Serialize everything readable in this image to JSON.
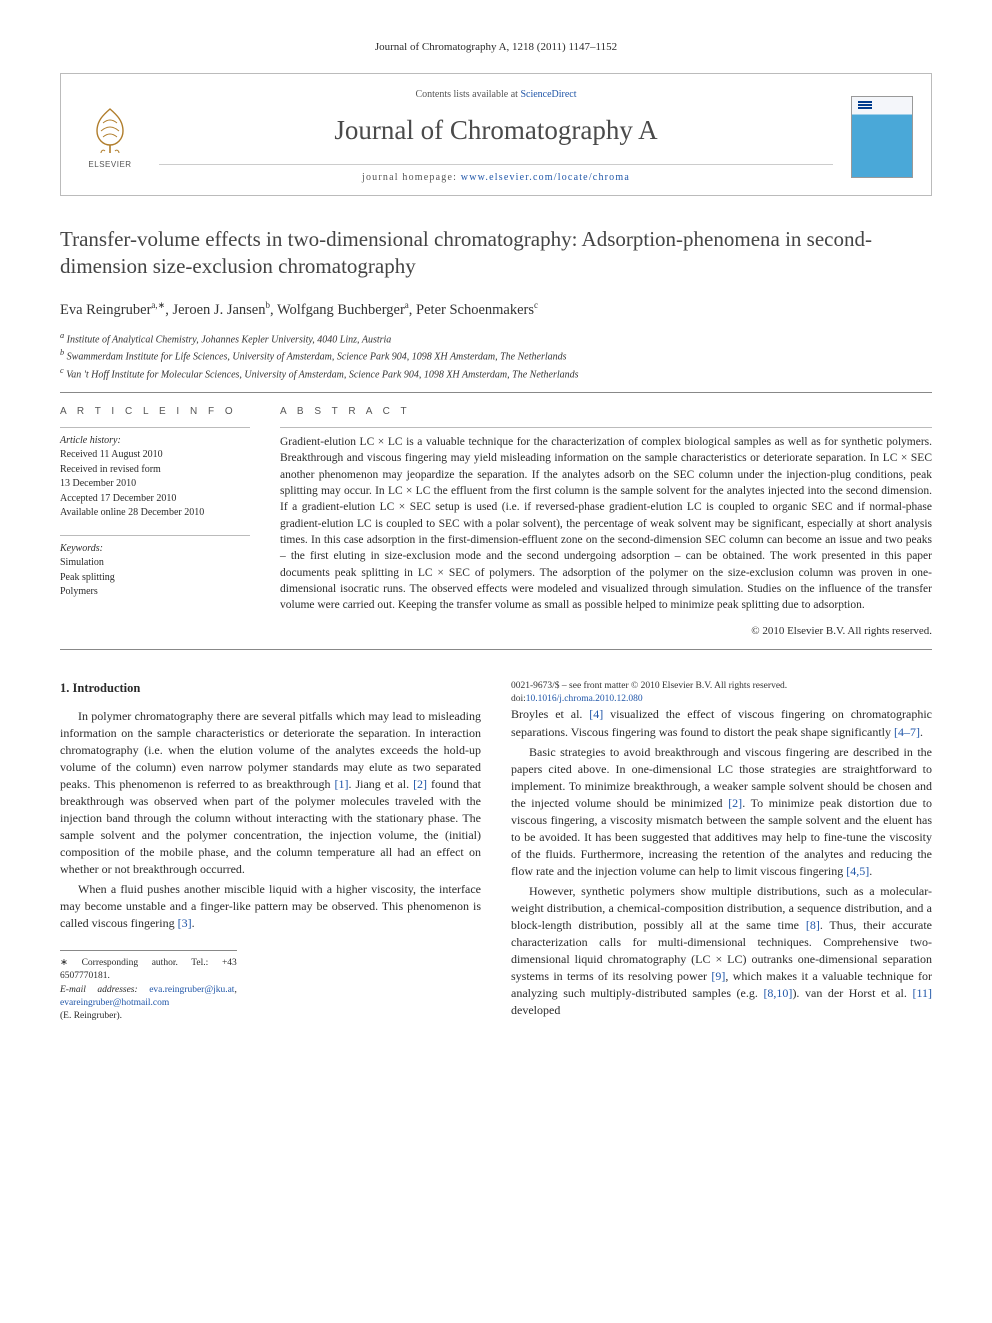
{
  "citation": "Journal of Chromatography A, 1218 (2011) 1147–1152",
  "header": {
    "contents_prefix": "Contents lists available at ",
    "contents_link": "ScienceDirect",
    "journal_name": "Journal of Chromatography A",
    "homepage_prefix": "journal homepage: ",
    "homepage_url": "www.elsevier.com/locate/chroma",
    "publisher_label": "ELSEVIER"
  },
  "title": "Transfer-volume effects in two-dimensional chromatography: Adsorption-phenomena in second-dimension size-exclusion chromatography",
  "authors_html": "Eva Reingruber<sup>a,∗</sup>, Jeroen J. Jansen<sup>b</sup>, Wolfgang Buchberger<sup>a</sup>, Peter Schoenmakers<sup>c</sup>",
  "affiliations": {
    "a": "Institute of Analytical Chemistry, Johannes Kepler University, 4040 Linz, Austria",
    "b": "Swammerdam Institute for Life Sciences, University of Amsterdam, Science Park 904, 1098 XH Amsterdam, The Netherlands",
    "c": "Van 't Hoff Institute for Molecular Sciences, University of Amsterdam, Science Park 904, 1098 XH Amsterdam, The Netherlands"
  },
  "article_info": {
    "heading": "A R T I C L E   I N F O",
    "history_label": "Article history:",
    "history": [
      "Received 11 August 2010",
      "Received in revised form",
      "13 December 2010",
      "Accepted 17 December 2010",
      "Available online 28 December 2010"
    ],
    "keywords_label": "Keywords:",
    "keywords": [
      "Simulation",
      "Peak splitting",
      "Polymers"
    ]
  },
  "abstract": {
    "heading": "A B S T R A C T",
    "text": "Gradient-elution LC × LC is a valuable technique for the characterization of complex biological samples as well as for synthetic polymers. Breakthrough and viscous fingering may yield misleading information on the sample characteristics or deteriorate separation. In LC × SEC another phenomenon may jeopardize the separation. If the analytes adsorb on the SEC column under the injection-plug conditions, peak splitting may occur. In LC × LC the effluent from the first column is the sample solvent for the analytes injected into the second dimension. If a gradient-elution LC × SEC setup is used (i.e. if reversed-phase gradient-elution LC is coupled to organic SEC and if normal-phase gradient-elution LC is coupled to SEC with a polar solvent), the percentage of weak solvent may be significant, especially at short analysis times. In this case adsorption in the first-dimension-effluent zone on the second-dimension SEC column can become an issue and two peaks – the first eluting in size-exclusion mode and the second undergoing adsorption – can be obtained. The work presented in this paper documents peak splitting in LC × SEC of polymers. The adsorption of the polymer on the size-exclusion column was proven in one-dimensional isocratic runs. The observed effects were modeled and visualized through simulation. Studies on the influence of the transfer volume were carried out. Keeping the transfer volume as small as possible helped to minimize peak splitting due to adsorption.",
    "copyright": "© 2010 Elsevier B.V. All rights reserved."
  },
  "body": {
    "section1_head": "1. Introduction",
    "p1": "In polymer chromatography there are several pitfalls which may lead to misleading information on the sample characteristics or deteriorate the separation. In interaction chromatography (i.e. when the elution volume of the analytes exceeds the hold-up volume of the column) even narrow polymer standards may elute as two separated peaks. This phenomenon is referred to as breakthrough [1]. Jiang et al. [2] found that breakthrough was observed when part of the polymer molecules traveled with the injection band through the column without interacting with the stationary phase. The sample solvent and the polymer concentration, the injection volume, the (initial) composition of the mobile phase, and the column temperature all had an effect on whether or not breakthrough occurred.",
    "p2": "When a fluid pushes another miscible liquid with a higher viscosity, the interface may become unstable and a finger-like pattern may be observed. This phenomenon is called viscous fingering [3].",
    "p3": "Broyles et al. [4] visualized the effect of viscous fingering on chromatographic separations. Viscous fingering was found to distort the peak shape significantly [4–7].",
    "p4": "Basic strategies to avoid breakthrough and viscous fingering are described in the papers cited above. In one-dimensional LC those strategies are straightforward to implement. To minimize breakthrough, a weaker sample solvent should be chosen and the injected volume should be minimized [2]. To minimize peak distortion due to viscous fingering, a viscosity mismatch between the sample solvent and the eluent has to be avoided. It has been suggested that additives may help to fine-tune the viscosity of the fluids. Furthermore, increasing the retention of the analytes and reducing the flow rate and the injection volume can help to limit viscous fingering [4,5].",
    "p5": "However, synthetic polymers show multiple distributions, such as a molecular-weight distribution, a chemical-composition distribution, a sequence distribution, and a block-length distribution, possibly all at the same time [8]. Thus, their accurate characterization calls for multi-dimensional techniques. Comprehensive two-dimensional liquid chromatography (LC × LC) outranks one-dimensional separation systems in terms of its resolving power [9], which makes it a valuable technique for analyzing such multiply-distributed samples (e.g. [8,10]). van der Horst et al. [11] developed"
  },
  "footnote": {
    "corr_label": "∗ Corresponding author. Tel.: +43 6507770181.",
    "email_label": "E-mail addresses:",
    "email1": "eva.reingruber@jku.at",
    "email2": "evareingruber@hotmail.com",
    "email_person": "(E. Reingruber)."
  },
  "bottom": {
    "issn_line": "0021-9673/$ – see front matter © 2010 Elsevier B.V. All rights reserved.",
    "doi_prefix": "doi:",
    "doi": "10.1016/j.chroma.2010.12.080"
  }
}
